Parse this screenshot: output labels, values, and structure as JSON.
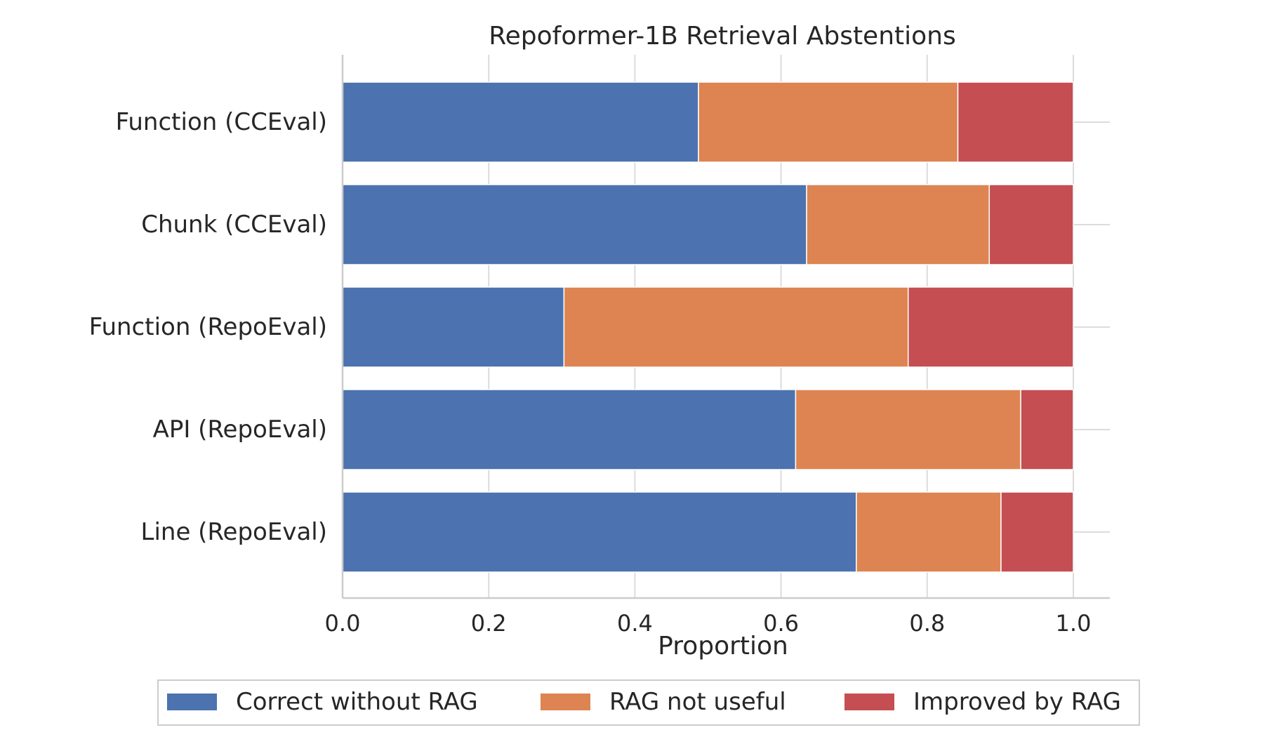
{
  "chart_data": {
    "type": "bar",
    "orientation": "horizontal",
    "stacked": true,
    "title": "Repoformer-1B Retrieval Abstentions",
    "xlabel": "Proportion",
    "ylabel": "",
    "xlim": [
      0.0,
      1.05
    ],
    "xticks": [
      "0.0",
      "0.2",
      "0.4",
      "0.6",
      "0.8",
      "1.0"
    ],
    "categories": [
      "Function (CCEval)",
      "Chunk (CCEval)",
      "Function (RepoEval)",
      "API (RepoEval)",
      "Line (RepoEval)"
    ],
    "series": [
      {
        "name": "Correct without RAG",
        "color": "#4c72b0",
        "values": [
          0.487,
          0.635,
          0.303,
          0.62,
          0.703
        ]
      },
      {
        "name": "RAG not useful",
        "color": "#dd8452",
        "values": [
          0.355,
          0.25,
          0.471,
          0.308,
          0.198
        ]
      },
      {
        "name": "Improved by RAG",
        "color": "#c44e52",
        "values": [
          0.158,
          0.115,
          0.226,
          0.072,
          0.099
        ]
      }
    ],
    "grid": true,
    "legend": "bottom-center"
  }
}
